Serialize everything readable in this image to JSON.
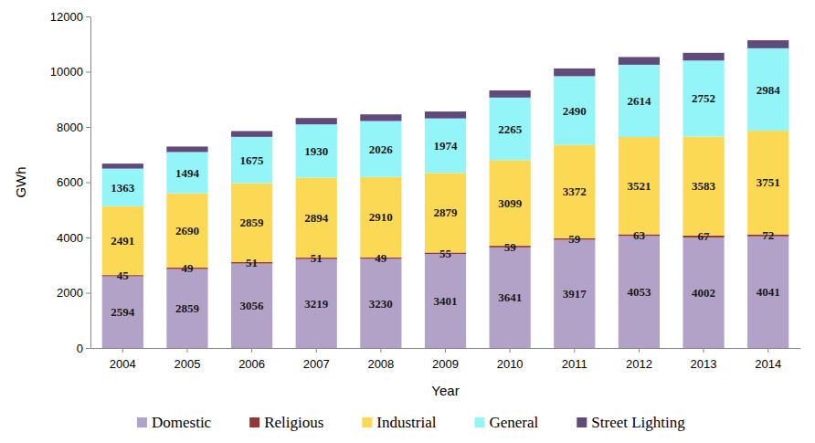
{
  "chart_data": {
    "type": "bar",
    "stacked": true,
    "data_labels": true,
    "x_label": "Year",
    "y_label": "GWh",
    "legend": "bottom",
    "categories": [
      "2004",
      "2005",
      "2006",
      "2007",
      "2008",
      "2009",
      "2010",
      "2011",
      "2012",
      "2013",
      "2014"
    ],
    "ylim": [
      0,
      12000
    ],
    "yticks": [
      0,
      2000,
      4000,
      6000,
      8000,
      10000,
      12000
    ],
    "series": [
      {
        "name": "Domestic",
        "color": "#b3a2c7",
        "values": [
          2594,
          2859,
          3056,
          3219,
          3230,
          3401,
          3641,
          3917,
          4053,
          4002,
          4041
        ]
      },
      {
        "name": "Religious",
        "color": "#953735",
        "values": [
          45,
          49,
          51,
          51,
          49,
          55,
          59,
          59,
          63,
          67,
          72
        ]
      },
      {
        "name": "Industrial",
        "color": "#fcd954",
        "values": [
          2491,
          2690,
          2859,
          2894,
          2910,
          2879,
          3099,
          3372,
          3521,
          3583,
          3751
        ]
      },
      {
        "name": "General",
        "color": "#93f5f7",
        "values": [
          1363,
          1494,
          1675,
          1930,
          2026,
          1974,
          2265,
          2490,
          2614,
          2752,
          2984
        ]
      },
      {
        "name": "Street Lighting",
        "color": "#604a7b",
        "data_labels": false,
        "values": [
          180,
          200,
          210,
          230,
          240,
          250,
          260,
          280,
          280,
          280,
          290
        ]
      }
    ]
  }
}
